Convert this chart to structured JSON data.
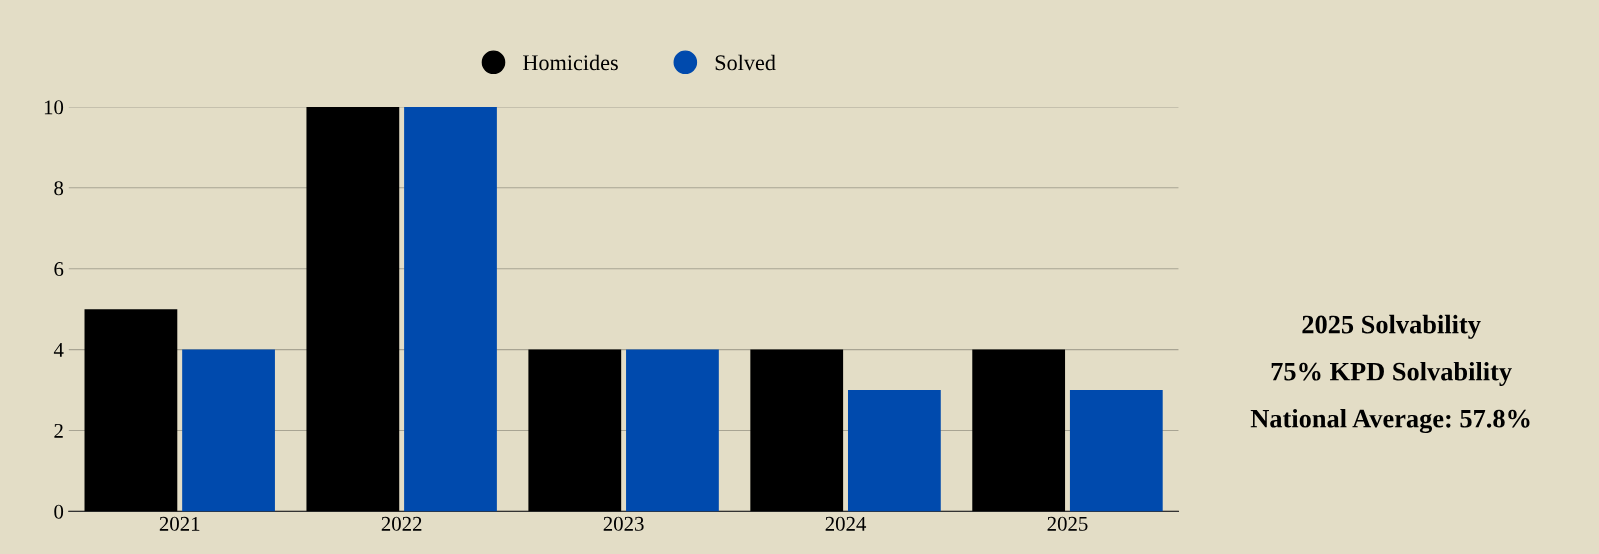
{
  "chart_data": {
    "type": "bar",
    "categories": [
      "2021",
      "2022",
      "2023",
      "2024",
      "2025"
    ],
    "series": [
      {
        "name": "Homicides",
        "color": "#000000",
        "values": [
          5,
          10,
          4,
          4,
          4
        ]
      },
      {
        "name": "Solved",
        "color": "#004aad",
        "values": [
          4,
          10,
          4,
          3,
          3
        ]
      }
    ],
    "ylim": [
      0,
      10
    ],
    "yticks": [
      0,
      2,
      4,
      6,
      8,
      10
    ],
    "grid": "y",
    "legend": "top",
    "annotations": [
      "2025 Solvability",
      "75% KPD Solvability",
      "National Average: 57.8%"
    ]
  }
}
